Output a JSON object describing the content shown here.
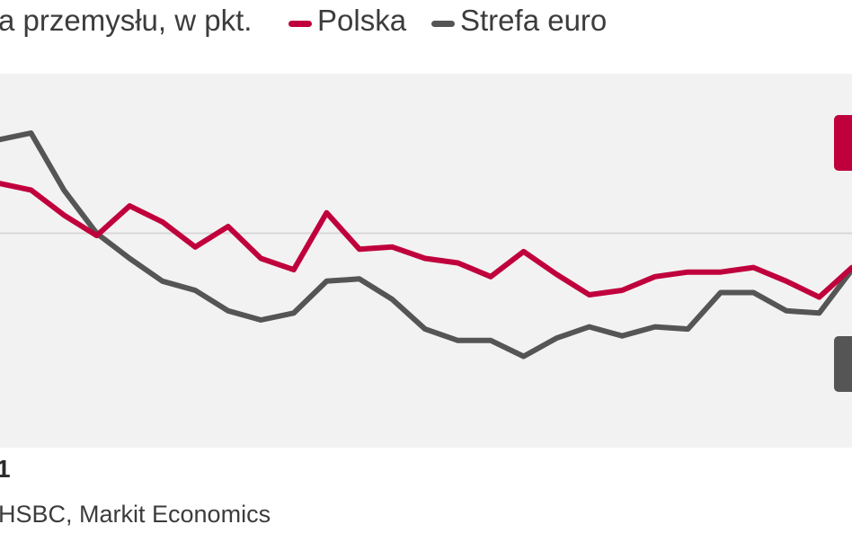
{
  "header": {
    "title": "a przemysłu, w pkt."
  },
  "legend": [
    {
      "name": "Polska",
      "color": "#c0003c"
    },
    {
      "name": "Strefa euro",
      "color": "#555555"
    }
  ],
  "chart_data": {
    "type": "line",
    "title": "a przemysłu, w pkt.",
    "xlabel": "",
    "ylabel": "",
    "x_tick_labels": [
      "1"
    ],
    "grid": "single horizontal reference line",
    "legend_position": "top",
    "series": [
      {
        "name": "Polska",
        "color": "#c0003c",
        "values": [
          52.2,
          51.9,
          50.8,
          49.9,
          51.2,
          50.5,
          49.4,
          50.3,
          48.9,
          48.4,
          50.9,
          49.3,
          49.4,
          48.9,
          48.7,
          48.1,
          49.2,
          48.2,
          47.3,
          47.5,
          48.1,
          48.3,
          48.3,
          48.5,
          47.9,
          47.2,
          48.5
        ]
      },
      {
        "name": "Strefa euro",
        "color": "#555555",
        "values": [
          54.1,
          54.4,
          51.9,
          50.0,
          48.9,
          47.9,
          47.5,
          46.6,
          46.2,
          46.5,
          47.9,
          48.0,
          47.1,
          45.8,
          45.3,
          45.3,
          44.6,
          45.4,
          45.9,
          45.5,
          45.9,
          45.8,
          47.4,
          47.4,
          46.6,
          46.5,
          48.4
        ]
      }
    ]
  },
  "axis": {
    "tick_label": "1"
  },
  "footer": {
    "source": "HSBC, Markit Economics"
  },
  "colors": {
    "polska": "#c0003c",
    "strefa_euro": "#555555",
    "plot_background": "#f2f2f2",
    "reference_line": "#d8d8d8"
  }
}
